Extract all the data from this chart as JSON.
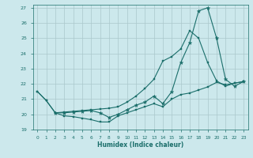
{
  "xlabel": "Humidex (Indice chaleur)",
  "background_color": "#cce8ec",
  "grid_color": "#aac8cc",
  "line_color": "#1a6e6a",
  "xlim": [
    -0.5,
    23.5
  ],
  "ylim": [
    19,
    27.2
  ],
  "yticks": [
    19,
    20,
    21,
    22,
    23,
    24,
    25,
    26,
    27
  ],
  "xticks": [
    0,
    1,
    2,
    3,
    4,
    5,
    6,
    7,
    8,
    9,
    10,
    11,
    12,
    13,
    14,
    15,
    16,
    17,
    18,
    19,
    20,
    21,
    22,
    23
  ],
  "line1_x": [
    0,
    1,
    2,
    3,
    4,
    5,
    6,
    7,
    8,
    9,
    10,
    11,
    12,
    13,
    14,
    15,
    16,
    17,
    18,
    19,
    20,
    21,
    22,
    23
  ],
  "line1_y": [
    21.5,
    20.9,
    20.1,
    19.9,
    19.85,
    19.75,
    19.65,
    19.5,
    19.5,
    19.9,
    20.1,
    20.3,
    20.5,
    20.7,
    20.5,
    21.0,
    21.3,
    21.4,
    21.6,
    21.8,
    22.1,
    21.95,
    22.05,
    22.15
  ],
  "line2_x": [
    0,
    1,
    2,
    3,
    4,
    5,
    6,
    7,
    8,
    9,
    10,
    11,
    12,
    13,
    14,
    15,
    16,
    17,
    18,
    19,
    20,
    21,
    22,
    23
  ],
  "line2_y": [
    21.5,
    20.9,
    20.1,
    20.15,
    20.2,
    20.25,
    20.3,
    20.35,
    20.4,
    20.5,
    20.8,
    21.2,
    21.7,
    22.3,
    23.5,
    23.8,
    24.3,
    25.5,
    25.0,
    23.4,
    22.2,
    21.85,
    22.05,
    22.15
  ],
  "line3_x": [
    2,
    3,
    4,
    5,
    6,
    7,
    8,
    9,
    10,
    11,
    12,
    13,
    14,
    15,
    16,
    17,
    18,
    19,
    20,
    21,
    22,
    23
  ],
  "line3_y": [
    20.1,
    20.1,
    20.15,
    20.2,
    20.25,
    20.1,
    19.8,
    20.0,
    20.3,
    20.6,
    20.8,
    21.2,
    20.7,
    21.5,
    23.4,
    24.7,
    26.8,
    27.0,
    25.0,
    22.3,
    21.85,
    22.15
  ]
}
